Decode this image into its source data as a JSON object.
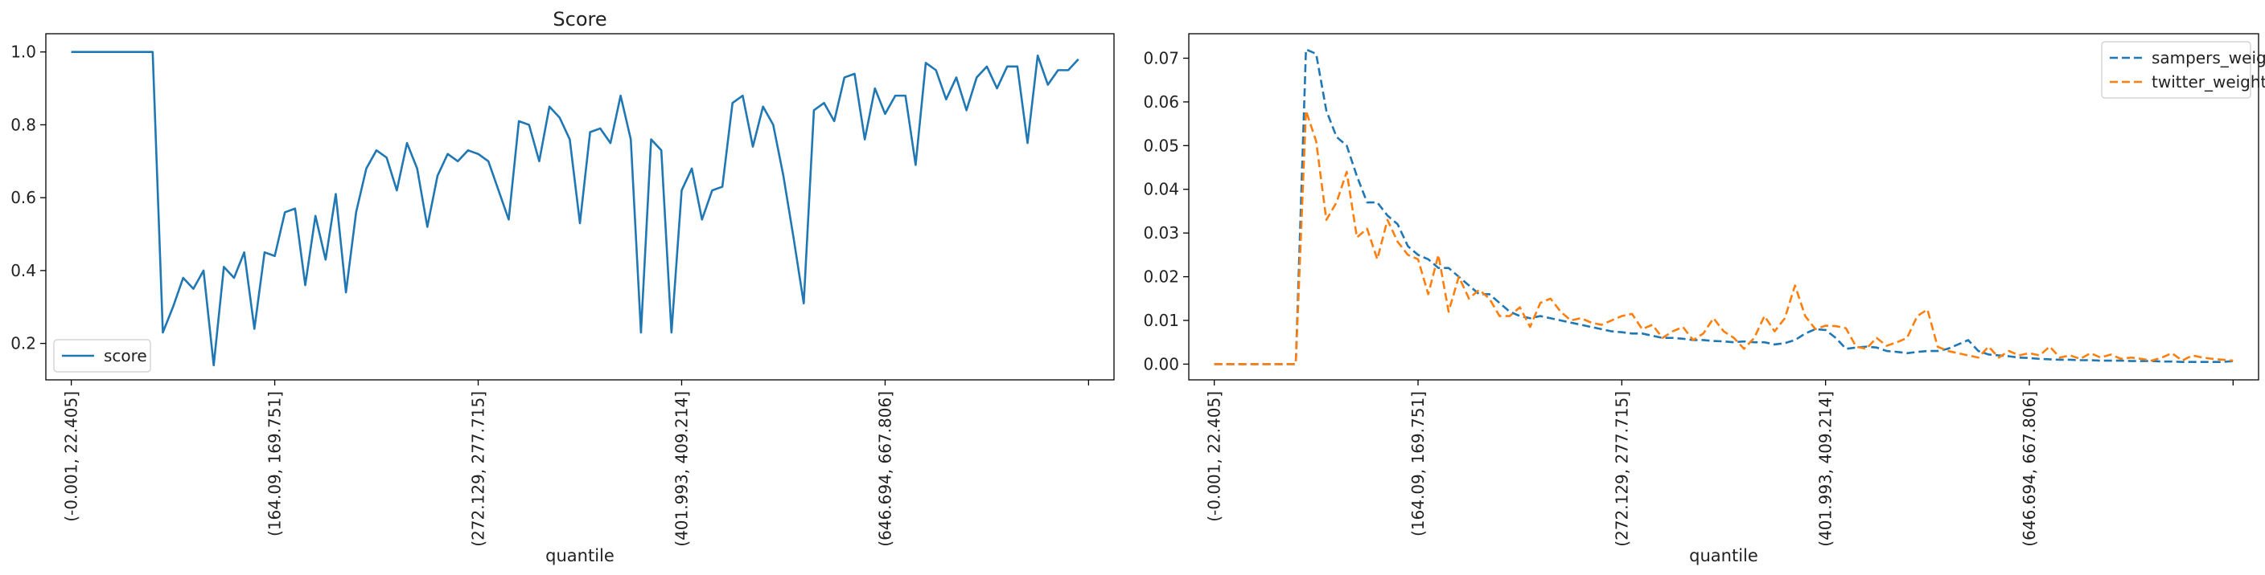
{
  "colors": {
    "blue": "#1f77b4",
    "orange": "#ff7f0e",
    "axis": "#000000",
    "legend_border": "#cccccc"
  },
  "chart_data": [
    {
      "type": "line",
      "title": "Score",
      "xlabel": "quantile",
      "ylabel": "",
      "ylim": [
        0.1,
        1.05
      ],
      "yticks": [
        0.2,
        0.4,
        0.6,
        0.8,
        1.0
      ],
      "ytick_labels": [
        "0.2",
        "0.4",
        "0.6",
        "0.8",
        "1.0"
      ],
      "xlim": [
        -2.5,
        102.5
      ],
      "xticks": [
        0,
        20,
        40,
        60,
        80,
        100
      ],
      "xtick_labels": [
        "(-0.001, 22.405]",
        "(164.09, 169.751]",
        "(272.129, 277.715]",
        "(401.993, 409.214]",
        "(646.694, 667.806]",
        ""
      ],
      "grid": false,
      "legend_position": "lower-left",
      "series": [
        {
          "name": "score",
          "style": "solid",
          "color": "#1f77b4",
          "values": [
            1.0,
            1.0,
            1.0,
            1.0,
            1.0,
            1.0,
            1.0,
            1.0,
            1.0,
            0.23,
            0.3,
            0.38,
            0.35,
            0.4,
            0.14,
            0.41,
            0.38,
            0.45,
            0.24,
            0.45,
            0.44,
            0.56,
            0.57,
            0.36,
            0.55,
            0.43,
            0.61,
            0.34,
            0.56,
            0.68,
            0.73,
            0.71,
            0.62,
            0.75,
            0.68,
            0.52,
            0.66,
            0.72,
            0.7,
            0.73,
            0.72,
            0.7,
            0.62,
            0.54,
            0.81,
            0.8,
            0.7,
            0.85,
            0.82,
            0.76,
            0.53,
            0.78,
            0.79,
            0.75,
            0.88,
            0.76,
            0.23,
            0.76,
            0.73,
            0.23,
            0.62,
            0.68,
            0.54,
            0.62,
            0.63,
            0.86,
            0.88,
            0.74,
            0.85,
            0.8,
            0.66,
            0.49,
            0.31,
            0.84,
            0.86,
            0.81,
            0.93,
            0.94,
            0.76,
            0.9,
            0.83,
            0.88,
            0.88,
            0.69,
            0.97,
            0.95,
            0.87,
            0.93,
            0.84,
            0.93,
            0.96,
            0.9,
            0.96,
            0.96,
            0.75,
            0.99,
            0.91,
            0.95,
            0.95,
            0.98
          ]
        }
      ]
    },
    {
      "type": "line",
      "title": "",
      "xlabel": "quantile",
      "ylabel": "",
      "ylim": [
        -0.0036,
        0.0756
      ],
      "yticks": [
        0.0,
        0.01,
        0.02,
        0.03,
        0.04,
        0.05,
        0.06,
        0.07
      ],
      "ytick_labels": [
        "0.00",
        "0.01",
        "0.02",
        "0.03",
        "0.04",
        "0.05",
        "0.06",
        "0.07"
      ],
      "xlim": [
        -2.5,
        102.5
      ],
      "xticks": [
        0,
        20,
        40,
        60,
        80,
        100
      ],
      "xtick_labels": [
        "(-0.001, 22.405]",
        "(164.09, 169.751]",
        "(272.129, 277.715]",
        "(401.993, 409.214]",
        "(646.694, 667.806]",
        ""
      ],
      "grid": false,
      "legend_position": "upper-right",
      "series": [
        {
          "name": "sampers_weight",
          "style": "dashed",
          "color": "#1f77b4",
          "values": [
            0,
            0,
            0,
            0,
            0,
            0,
            0,
            0,
            0,
            0.072,
            0.071,
            0.058,
            0.052,
            0.05,
            0.043,
            0.037,
            0.037,
            0.034,
            0.032,
            0.027,
            0.025,
            0.024,
            0.022,
            0.022,
            0.02,
            0.018,
            0.016,
            0.016,
            0.014,
            0.012,
            0.011,
            0.0105,
            0.011,
            0.0105,
            0.01,
            0.0095,
            0.009,
            0.0085,
            0.008,
            0.0075,
            0.0073,
            0.007,
            0.007,
            0.0065,
            0.006,
            0.006,
            0.0058,
            0.0055,
            0.0055,
            0.0053,
            0.0052,
            0.005,
            0.0052,
            0.005,
            0.005,
            0.0045,
            0.0048,
            0.0055,
            0.007,
            0.008,
            0.0078,
            0.006,
            0.0035,
            0.0038,
            0.004,
            0.0038,
            0.003,
            0.0028,
            0.0025,
            0.0028,
            0.003,
            0.003,
            0.0035,
            0.0045,
            0.0055,
            0.003,
            0.0022,
            0.002,
            0.0018,
            0.0015,
            0.0014,
            0.0012,
            0.0011,
            0.001,
            0.001,
            0.0009,
            0.0009,
            0.0008,
            0.0008,
            0.0008,
            0.0007,
            0.0007,
            0.0007,
            0.0006,
            0.0006,
            0.0005,
            0.0005,
            0.0005,
            0.0005,
            0.0005,
            0.0007
          ]
        },
        {
          "name": "twitter_weight",
          "style": "dashed",
          "color": "#ff7f0e",
          "values": [
            0,
            0,
            0,
            0,
            0,
            0,
            0,
            0,
            0,
            0.058,
            0.051,
            0.033,
            0.037,
            0.044,
            0.029,
            0.031,
            0.024,
            0.033,
            0.028,
            0.025,
            0.024,
            0.016,
            0.025,
            0.012,
            0.02,
            0.015,
            0.017,
            0.015,
            0.011,
            0.011,
            0.013,
            0.0085,
            0.014,
            0.015,
            0.012,
            0.01,
            0.0105,
            0.0095,
            0.009,
            0.01,
            0.011,
            0.0115,
            0.008,
            0.009,
            0.006,
            0.0075,
            0.0085,
            0.0055,
            0.007,
            0.0105,
            0.0075,
            0.006,
            0.0035,
            0.006,
            0.011,
            0.0075,
            0.0105,
            0.018,
            0.011,
            0.008,
            0.0088,
            0.0087,
            0.0082,
            0.004,
            0.0035,
            0.006,
            0.0042,
            0.005,
            0.006,
            0.011,
            0.0125,
            0.004,
            0.003,
            0.0025,
            0.002,
            0.0015,
            0.004,
            0.0015,
            0.003,
            0.002,
            0.0025,
            0.002,
            0.004,
            0.0015,
            0.002,
            0.0012,
            0.0025,
            0.0015,
            0.0022,
            0.0012,
            0.0015,
            0.0012,
            0.0008,
            0.0015,
            0.0025,
            0.0008,
            0.002,
            0.0015,
            0.0012,
            0.001,
            0.0008
          ]
        }
      ]
    }
  ]
}
